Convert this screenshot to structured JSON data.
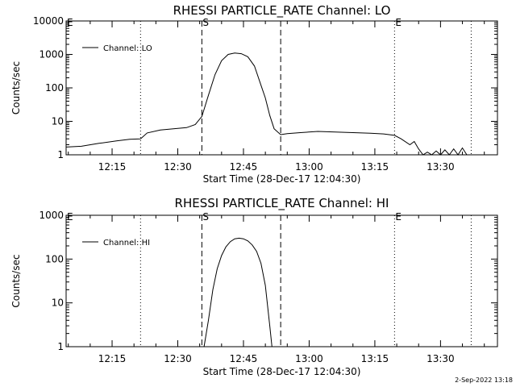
{
  "footer": {
    "timestamp": "2-Sep-2022 13:18"
  },
  "chart_data": [
    {
      "type": "line",
      "title": "RHESSI PARTICLE_RATE Channel: LO",
      "xlabel": "Start Time (28-Dec-17 12:04:30)",
      "ylabel": "Counts/sec",
      "yscale": "log",
      "xlim": [
        "12:04:30",
        "13:43:00"
      ],
      "ylim": [
        1,
        10000
      ],
      "x_ticks": [
        "12:15",
        "12:30",
        "12:45",
        "13:00",
        "13:15",
        "13:30"
      ],
      "y_ticks": [
        "1",
        "10",
        "100",
        "1000",
        "10000"
      ],
      "legend": {
        "position": "top-left",
        "entries": [
          "Channel: LO"
        ]
      },
      "markers": [
        {
          "label": "E",
          "time": "12:04:30",
          "style": "dotted"
        },
        {
          "label": "",
          "time": "12:21:30",
          "style": "dotted"
        },
        {
          "label": "S",
          "time": "12:35:30",
          "style": "dashed"
        },
        {
          "label": "",
          "time": "12:53:30",
          "style": "dashed"
        },
        {
          "label": "E",
          "time": "13:19:30",
          "style": "dotted"
        },
        {
          "label": "",
          "time": "13:37:00",
          "style": "dotted"
        }
      ],
      "series": [
        {
          "name": "Channel: LO",
          "x": [
            "12:04:30",
            "12:08:00",
            "12:12:00",
            "12:16:00",
            "12:19:00",
            "12:21:30",
            "12:23:00",
            "12:26:00",
            "12:29:00",
            "12:32:00",
            "12:34:00",
            "12:35:30",
            "12:37:00",
            "12:38:30",
            "12:40:00",
            "12:41:30",
            "12:43:00",
            "12:44:30",
            "12:46:00",
            "12:47:30",
            "12:49:00",
            "12:50:00",
            "12:51:00",
            "12:52:00",
            "12:53:30",
            "12:55:00",
            "12:58:00",
            "13:02:00",
            "13:06:00",
            "13:10:00",
            "13:14:00",
            "13:17:00",
            "13:19:30",
            "13:21:00",
            "13:23:00",
            "13:24:00",
            "13:25:00",
            "13:26:00",
            "13:27:00",
            "13:28:00",
            "13:29:00",
            "13:30:00",
            "13:31:00",
            "13:32:00",
            "13:33:00",
            "13:34:00",
            "13:35:00",
            "13:36:00"
          ],
          "values": [
            1.7,
            1.8,
            2.2,
            2.6,
            2.9,
            3.0,
            4.5,
            5.5,
            6.0,
            6.5,
            8.0,
            14,
            60,
            250,
            650,
            1000,
            1100,
            1050,
            850,
            450,
            120,
            50,
            15,
            6,
            4.0,
            4.3,
            4.6,
            5.0,
            4.8,
            4.6,
            4.4,
            4.2,
            3.8,
            3.0,
            2.0,
            2.5,
            1.5,
            1.0,
            1.2,
            1.0,
            1.3,
            1.0,
            1.4,
            1.0,
            1.5,
            1.0,
            1.6,
            1.0
          ]
        }
      ]
    },
    {
      "type": "line",
      "title": "RHESSI PARTICLE_RATE Channel: HI",
      "xlabel": "Start Time (28-Dec-17 12:04:30)",
      "ylabel": "Counts/sec",
      "yscale": "log",
      "xlim": [
        "12:04:30",
        "13:43:00"
      ],
      "ylim": [
        1,
        1000
      ],
      "x_ticks": [
        "12:15",
        "12:30",
        "12:45",
        "13:00",
        "13:15",
        "13:30"
      ],
      "y_ticks": [
        "1",
        "10",
        "100",
        "1000"
      ],
      "legend": {
        "position": "top-left",
        "entries": [
          "Channel: HI"
        ]
      },
      "markers": [
        {
          "label": "E",
          "time": "12:04:30",
          "style": "dotted"
        },
        {
          "label": "",
          "time": "12:21:30",
          "style": "dotted"
        },
        {
          "label": "S",
          "time": "12:35:30",
          "style": "dashed"
        },
        {
          "label": "",
          "time": "12:53:30",
          "style": "dashed"
        },
        {
          "label": "E",
          "time": "13:19:30",
          "style": "dotted"
        },
        {
          "label": "",
          "time": "13:37:00",
          "style": "dotted"
        }
      ],
      "series": [
        {
          "name": "Channel: HI",
          "x": [
            "12:36:00",
            "12:37:00",
            "12:38:00",
            "12:39:00",
            "12:40:00",
            "12:41:00",
            "12:42:00",
            "12:43:00",
            "12:44:00",
            "12:45:00",
            "12:46:00",
            "12:47:00",
            "12:48:00",
            "12:49:00",
            "12:50:00",
            "12:51:00",
            "12:51:30"
          ],
          "values": [
            1,
            4,
            20,
            60,
            120,
            190,
            250,
            290,
            300,
            290,
            260,
            210,
            150,
            80,
            25,
            3,
            1
          ]
        }
      ]
    }
  ]
}
